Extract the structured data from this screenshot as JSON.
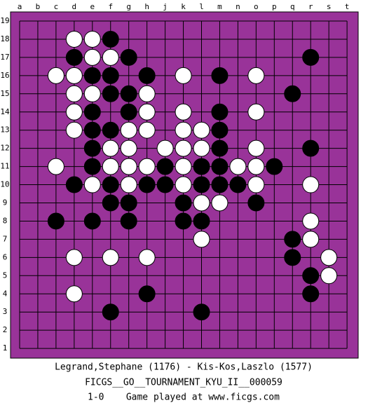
{
  "board": {
    "columns": [
      "a",
      "b",
      "c",
      "d",
      "e",
      "f",
      "g",
      "h",
      "j",
      "k",
      "l",
      "m",
      "n",
      "o",
      "p",
      "q",
      "r",
      "s",
      "t"
    ],
    "rows": [
      19,
      18,
      17,
      16,
      15,
      14,
      13,
      12,
      11,
      10,
      9,
      8,
      7,
      6,
      5,
      4,
      3,
      2,
      1
    ],
    "stones": {
      "black": [
        "f18",
        "d17",
        "g17",
        "r17",
        "e16",
        "f16",
        "h16",
        "m16",
        "f15",
        "g15",
        "q15",
        "e14",
        "g14",
        "m14",
        "e13",
        "f13",
        "m13",
        "e12",
        "m12",
        "r12",
        "e11",
        "j11",
        "l11",
        "m11",
        "p11",
        "d10",
        "f10",
        "h10",
        "j10",
        "l10",
        "m10",
        "n10",
        "f9",
        "g9",
        "k9",
        "o9",
        "c8",
        "e8",
        "g8",
        "k8",
        "l8",
        "q7",
        "q6",
        "r5",
        "h4",
        "r4",
        "f3",
        "l3"
      ],
      "white": [
        "d18",
        "e18",
        "e17",
        "f17",
        "c16",
        "d16",
        "k16",
        "o16",
        "d15",
        "e15",
        "h15",
        "d14",
        "h14",
        "k14",
        "o14",
        "d13",
        "g13",
        "h13",
        "k13",
        "l13",
        "f12",
        "g12",
        "j12",
        "k12",
        "l12",
        "o12",
        "c11",
        "f11",
        "g11",
        "h11",
        "k11",
        "n11",
        "o11",
        "e10",
        "g10",
        "k10",
        "o10",
        "r10",
        "l9",
        "m9",
        "r8",
        "l7",
        "r7",
        "d6",
        "f6",
        "h6",
        "s6",
        "s5",
        "d4"
      ]
    }
  },
  "footer": {
    "players": "Legrand,Stephane (1176) - Kis-Kos,Laszlo (1577)",
    "event": "FICGS__GO__TOURNAMENT_KYU_II__000059",
    "result": "1-0    Game played at www.ficgs.com"
  }
}
